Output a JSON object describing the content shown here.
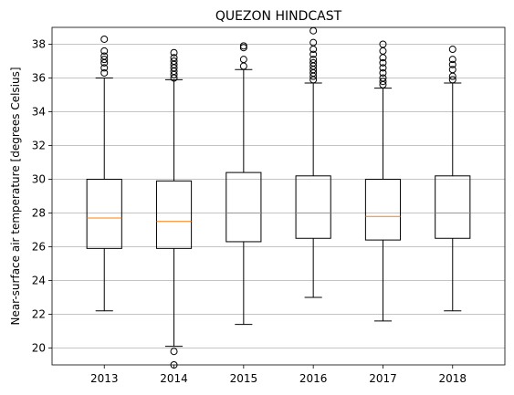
{
  "chart_data": {
    "type": "box",
    "title": "QUEZON HINDCAST",
    "xlabel": "",
    "ylabel": "Near-surface air temperature [degrees Celsius]",
    "categories": [
      "2013",
      "2014",
      "2015",
      "2016",
      "2017",
      "2018"
    ],
    "ylim": [
      19,
      39
    ],
    "yticks": [
      20,
      22,
      24,
      26,
      28,
      30,
      32,
      34,
      36,
      38
    ],
    "grid": "horizontal",
    "colors": {
      "box": "#000000",
      "median": "#ff7f0e",
      "grid": "#b0b0b0"
    },
    "boxes": [
      {
        "label": "2013",
        "whislo": 22.2,
        "q1": 25.9,
        "median": 27.7,
        "q3": 30.0,
        "whishi": 36.0,
        "fliers": [
          36.3,
          36.6,
          36.9,
          37.1,
          37.3,
          37.6,
          38.3
        ]
      },
      {
        "label": "2014",
        "whislo": 20.1,
        "q1": 25.9,
        "median": 27.5,
        "q3": 29.9,
        "whishi": 35.9,
        "fliers": [
          19.8,
          19.0,
          36.0,
          36.2,
          36.4,
          36.6,
          36.8,
          37.0,
          37.2,
          37.5
        ]
      },
      {
        "label": "2015",
        "whislo": 21.4,
        "q1": 26.3,
        "median": 28.0,
        "q3": 30.4,
        "whishi": 36.5,
        "fliers": [
          36.7,
          37.1,
          37.8,
          37.9
        ]
      },
      {
        "label": "2016",
        "whislo": 23.0,
        "q1": 26.5,
        "median": 28.0,
        "q3": 30.2,
        "whishi": 35.7,
        "fliers": [
          35.9,
          36.1,
          36.3,
          36.5,
          36.7,
          36.9,
          37.1,
          37.4,
          37.7,
          38.1,
          38.8
        ]
      },
      {
        "label": "2017",
        "whislo": 21.6,
        "q1": 26.4,
        "median": 27.8,
        "q3": 30.0,
        "whishi": 35.4,
        "fliers": [
          35.6,
          35.8,
          36.0,
          36.3,
          36.6,
          36.9,
          37.2,
          37.6,
          38.0
        ]
      },
      {
        "label": "2018",
        "whislo": 22.2,
        "q1": 26.5,
        "median": 28.0,
        "q3": 30.2,
        "whishi": 35.7,
        "fliers": [
          35.9,
          36.1,
          36.5,
          36.8,
          37.1,
          37.7
        ]
      }
    ]
  }
}
